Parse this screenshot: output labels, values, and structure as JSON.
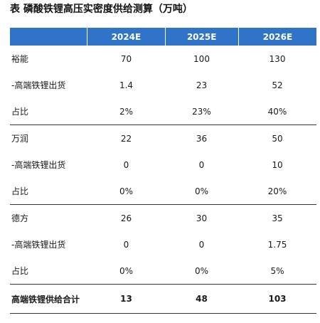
{
  "title": "表 磷酸铁锂高压实密度供给测算（万吨）",
  "header": [
    "",
    "2024E",
    "2025E",
    "2026E"
  ],
  "rows": [
    {
      "label": "裕能",
      "v": [
        "70",
        "100",
        "130"
      ],
      "band": false
    },
    {
      "label": "-高端铁锂出货",
      "v": [
        "1.4",
        "23",
        "52"
      ],
      "band": false
    },
    {
      "label": "占比",
      "v": [
        "2%",
        "23%",
        "40%"
      ],
      "band": false
    },
    {
      "label": "万润",
      "v": [
        "22",
        "36",
        "50"
      ],
      "band": true
    },
    {
      "label": "-高端铁锂出货",
      "v": [
        "0",
        "0",
        "10"
      ],
      "band": false
    },
    {
      "label": "占比",
      "v": [
        "0%",
        "0%",
        "20%"
      ],
      "band": false
    },
    {
      "label": "德方",
      "v": [
        "26",
        "30",
        "35"
      ],
      "band": true
    },
    {
      "label": "-高端铁锂出货",
      "v": [
        "0",
        "0",
        "1.75"
      ],
      "band": false
    },
    {
      "label": "占比",
      "v": [
        "0%",
        "0%",
        "5%"
      ],
      "band": false
    }
  ],
  "total": {
    "label": "高端铁锂供给合计",
    "v": [
      "13",
      "48",
      "103"
    ]
  },
  "colors": {
    "header_bg": "#2f74c8",
    "header_text": "#ffffff",
    "rule": "#333333"
  }
}
